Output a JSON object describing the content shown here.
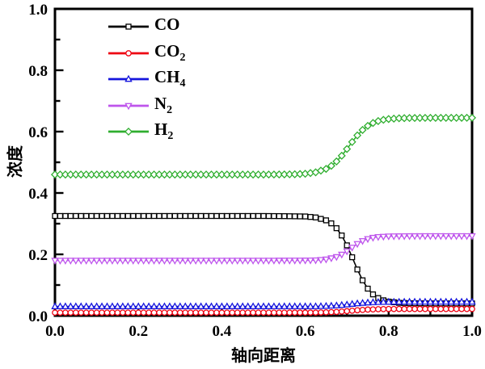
{
  "figure": {
    "background": "#ffffff",
    "axis_color": "#000000"
  },
  "chart_data": {
    "type": "line",
    "title": "",
    "xlabel": "轴向距离",
    "ylabel": "浓度",
    "xlim": [
      0,
      1
    ],
    "ylim": [
      0,
      1
    ],
    "grid": false,
    "legend_position": "top-left-inside",
    "marker_step": 0.0125,
    "minor_tick_step": 0.1,
    "xticks": {
      "values": [
        0,
        0.2,
        0.4,
        0.6,
        0.8,
        1.0
      ],
      "labels": [
        "0.0",
        "0.2",
        "0.4",
        "0.6",
        "0.8",
        "1.0"
      ]
    },
    "yticks": {
      "values": [
        0,
        0.2,
        0.4,
        0.6,
        0.8,
        1.0
      ],
      "labels": [
        "0.0",
        "0.2",
        "0.4",
        "0.6",
        "0.8",
        "1.0"
      ]
    },
    "series": [
      {
        "name": "CO",
        "label_main": "CO",
        "label_sub": "",
        "color": "#000000",
        "marker": "square",
        "points": [
          [
            0,
            0.325
          ],
          [
            0.5,
            0.325
          ],
          [
            0.55,
            0.3245
          ],
          [
            0.6,
            0.3235
          ],
          [
            0.625,
            0.3203
          ],
          [
            0.65,
            0.3108
          ],
          [
            0.6625,
            0.301
          ],
          [
            0.675,
            0.2852
          ],
          [
            0.6875,
            0.2615
          ],
          [
            0.7,
            0.2293
          ],
          [
            0.7125,
            0.1906
          ],
          [
            0.725,
            0.1507
          ],
          [
            0.7375,
            0.1154
          ],
          [
            0.75,
            0.0882
          ],
          [
            0.7625,
            0.0695
          ],
          [
            0.775,
            0.0575
          ],
          [
            0.7875,
            0.0502
          ],
          [
            0.8,
            0.0459
          ],
          [
            0.825,
            0.0419
          ],
          [
            0.85,
            0.0407
          ],
          [
            0.9,
            0.0401
          ],
          [
            1,
            0.04
          ]
        ]
      },
      {
        "name": "CO2",
        "label_main": "CO",
        "label_sub": "2",
        "color": "#ee0011",
        "marker": "circle",
        "points": [
          [
            0,
            0.01
          ],
          [
            0.5,
            0.01
          ],
          [
            0.625,
            0.0102
          ],
          [
            0.65,
            0.011
          ],
          [
            0.675,
            0.0124
          ],
          [
            0.7,
            0.0148
          ],
          [
            0.725,
            0.0178
          ],
          [
            0.75,
            0.02
          ],
          [
            0.775,
            0.0212
          ],
          [
            0.8,
            0.0218
          ],
          [
            0.85,
            0.022
          ],
          [
            1,
            0.022
          ]
        ]
      },
      {
        "name": "CH4",
        "label_main": "CH",
        "label_sub": "4",
        "color": "#1515dd",
        "marker": "triangle-up",
        "points": [
          [
            0,
            0.03
          ],
          [
            0.5,
            0.03
          ],
          [
            0.625,
            0.0302
          ],
          [
            0.65,
            0.0312
          ],
          [
            0.675,
            0.033
          ],
          [
            0.7,
            0.036
          ],
          [
            0.725,
            0.0397
          ],
          [
            0.75,
            0.0425
          ],
          [
            0.775,
            0.044
          ],
          [
            0.8,
            0.0447
          ],
          [
            0.85,
            0.045
          ],
          [
            1,
            0.045
          ]
        ]
      },
      {
        "name": "N2",
        "label_main": "N",
        "label_sub": "2",
        "color": "#be55ec",
        "marker": "triangle-down",
        "points": [
          [
            0,
            0.18
          ],
          [
            0.5,
            0.18
          ],
          [
            0.6,
            0.1805
          ],
          [
            0.625,
            0.1811
          ],
          [
            0.65,
            0.1838
          ],
          [
            0.675,
            0.1918
          ],
          [
            0.6875,
            0.1996
          ],
          [
            0.7,
            0.2102
          ],
          [
            0.7125,
            0.2225
          ],
          [
            0.725,
            0.2343
          ],
          [
            0.7375,
            0.2439
          ],
          [
            0.75,
            0.2505
          ],
          [
            0.7625,
            0.2546
          ],
          [
            0.775,
            0.257
          ],
          [
            0.8,
            0.2591
          ],
          [
            0.85,
            0.2598
          ],
          [
            0.9,
            0.26
          ],
          [
            1,
            0.26
          ]
        ]
      },
      {
        "name": "H2",
        "label_main": "H",
        "label_sub": "2",
        "color": "#2fae2f",
        "marker": "diamond",
        "points": [
          [
            0,
            0.46
          ],
          [
            0.5,
            0.46
          ],
          [
            0.55,
            0.4605
          ],
          [
            0.575,
            0.461
          ],
          [
            0.6,
            0.4627
          ],
          [
            0.625,
            0.4673
          ],
          [
            0.65,
            0.4785
          ],
          [
            0.6625,
            0.4886
          ],
          [
            0.675,
            0.5028
          ],
          [
            0.6875,
            0.5214
          ],
          [
            0.7,
            0.5433
          ],
          [
            0.7125,
            0.5663
          ],
          [
            0.725,
            0.5877
          ],
          [
            0.7375,
            0.6054
          ],
          [
            0.75,
            0.6187
          ],
          [
            0.7625,
            0.6281
          ],
          [
            0.775,
            0.6344
          ],
          [
            0.7875,
            0.6384
          ],
          [
            0.8,
            0.641
          ],
          [
            0.825,
            0.6435
          ],
          [
            0.85,
            0.6443
          ],
          [
            0.9,
            0.6448
          ],
          [
            1,
            0.645
          ]
        ]
      }
    ]
  }
}
